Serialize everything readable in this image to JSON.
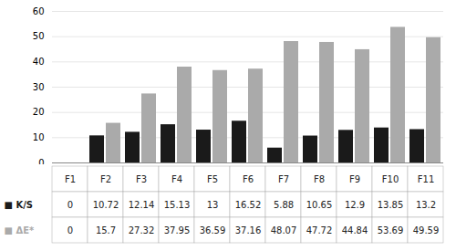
{
  "chart_data": {
    "type": "bar",
    "categories": [
      "F1",
      "F2",
      "F3",
      "F4",
      "F5",
      "F6",
      "F7",
      "F8",
      "F9",
      "F10",
      "F11"
    ],
    "series": [
      {
        "name": "■ K/S",
        "color": "#1a1a1a",
        "values": [
          0,
          10.72,
          12.14,
          15.13,
          13,
          16.52,
          5.88,
          10.65,
          12.9,
          13.85,
          13.2
        ]
      },
      {
        "name": "■ ΔE*",
        "color": "#aaaaaa",
        "values": [
          0,
          15.7,
          27.32,
          37.95,
          36.59,
          37.16,
          48.07,
          47.72,
          44.84,
          53.69,
          49.59
        ]
      }
    ],
    "ylim": [
      0,
      60
    ],
    "yticks": [
      0,
      10,
      20,
      30,
      40,
      50,
      60
    ],
    "grid": true
  }
}
